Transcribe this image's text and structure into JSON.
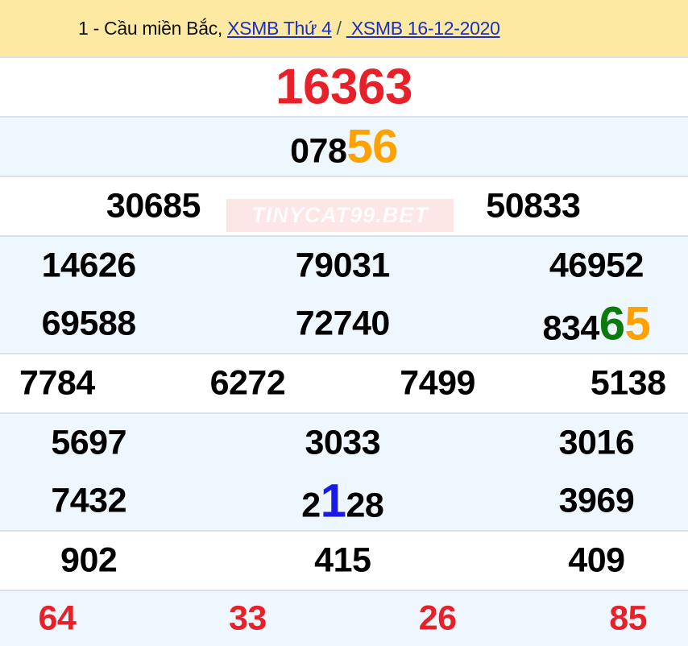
{
  "header": {
    "prefix": "1 - Cầu miền Bắc,",
    "link1": "XSMB Thứ 4",
    "separator": "/",
    "link2": " XSMB 16-12-2020"
  },
  "watermark": "TINYCAT99.BET",
  "colors": {
    "red": "#e8202a",
    "orange": "#ffa200",
    "green": "#0a7a0a",
    "blue": "#1a1ae6"
  },
  "rows": [
    {
      "bg": "w",
      "lines": [
        [
          {
            "segs": [
              {
                "t": "16363",
                "c": "red",
                "big": 1
              }
            ]
          }
        ]
      ]
    },
    {
      "bg": "b",
      "lines": [
        [
          {
            "segs": [
              {
                "t": "078"
              },
              {
                "t": "56",
                "c": "orange",
                "lg": 1
              }
            ]
          }
        ]
      ]
    },
    {
      "bg": "w",
      "lines": [
        [
          {
            "segs": [
              {
                "t": "30685"
              }
            ]
          },
          {
            "segs": [
              {
                "t": "50833"
              }
            ]
          }
        ]
      ]
    },
    {
      "bg": "b",
      "lines": [
        [
          {
            "segs": [
              {
                "t": "14626"
              }
            ]
          },
          {
            "segs": [
              {
                "t": "79031"
              }
            ]
          },
          {
            "segs": [
              {
                "t": "46952"
              }
            ]
          }
        ],
        [
          {
            "segs": [
              {
                "t": "69588"
              }
            ]
          },
          {
            "segs": [
              {
                "t": "72740"
              }
            ]
          },
          {
            "segs": [
              {
                "t": "834"
              },
              {
                "t": "6",
                "c": "green",
                "lg": 1
              },
              {
                "t": "5",
                "c": "orange",
                "lg": 1
              }
            ]
          }
        ]
      ]
    },
    {
      "bg": "w",
      "lines": [
        [
          {
            "segs": [
              {
                "t": "7784"
              }
            ]
          },
          {
            "segs": [
              {
                "t": "6272"
              }
            ]
          },
          {
            "segs": [
              {
                "t": "7499"
              }
            ]
          },
          {
            "segs": [
              {
                "t": "5138"
              }
            ]
          }
        ]
      ]
    },
    {
      "bg": "b",
      "lines": [
        [
          {
            "segs": [
              {
                "t": "5697"
              }
            ]
          },
          {
            "segs": [
              {
                "t": "3033"
              }
            ]
          },
          {
            "segs": [
              {
                "t": "3016"
              }
            ]
          }
        ],
        [
          {
            "segs": [
              {
                "t": "7432"
              }
            ]
          },
          {
            "segs": [
              {
                "t": "2"
              },
              {
                "t": "1",
                "c": "blue",
                "lg": 1
              },
              {
                "t": "28"
              }
            ]
          },
          {
            "segs": [
              {
                "t": "3969"
              }
            ]
          }
        ]
      ]
    },
    {
      "bg": "w",
      "lines": [
        [
          {
            "segs": [
              {
                "t": "902"
              }
            ]
          },
          {
            "segs": [
              {
                "t": "415"
              }
            ]
          },
          {
            "segs": [
              {
                "t": "409"
              }
            ]
          }
        ]
      ]
    },
    {
      "bg": "b",
      "lines": [
        [
          {
            "segs": [
              {
                "t": "64",
                "c": "red"
              }
            ]
          },
          {
            "segs": [
              {
                "t": "33",
                "c": "red"
              }
            ]
          },
          {
            "segs": [
              {
                "t": "26",
                "c": "red"
              }
            ]
          },
          {
            "segs": [
              {
                "t": "85",
                "c": "red"
              }
            ]
          }
        ]
      ]
    }
  ]
}
